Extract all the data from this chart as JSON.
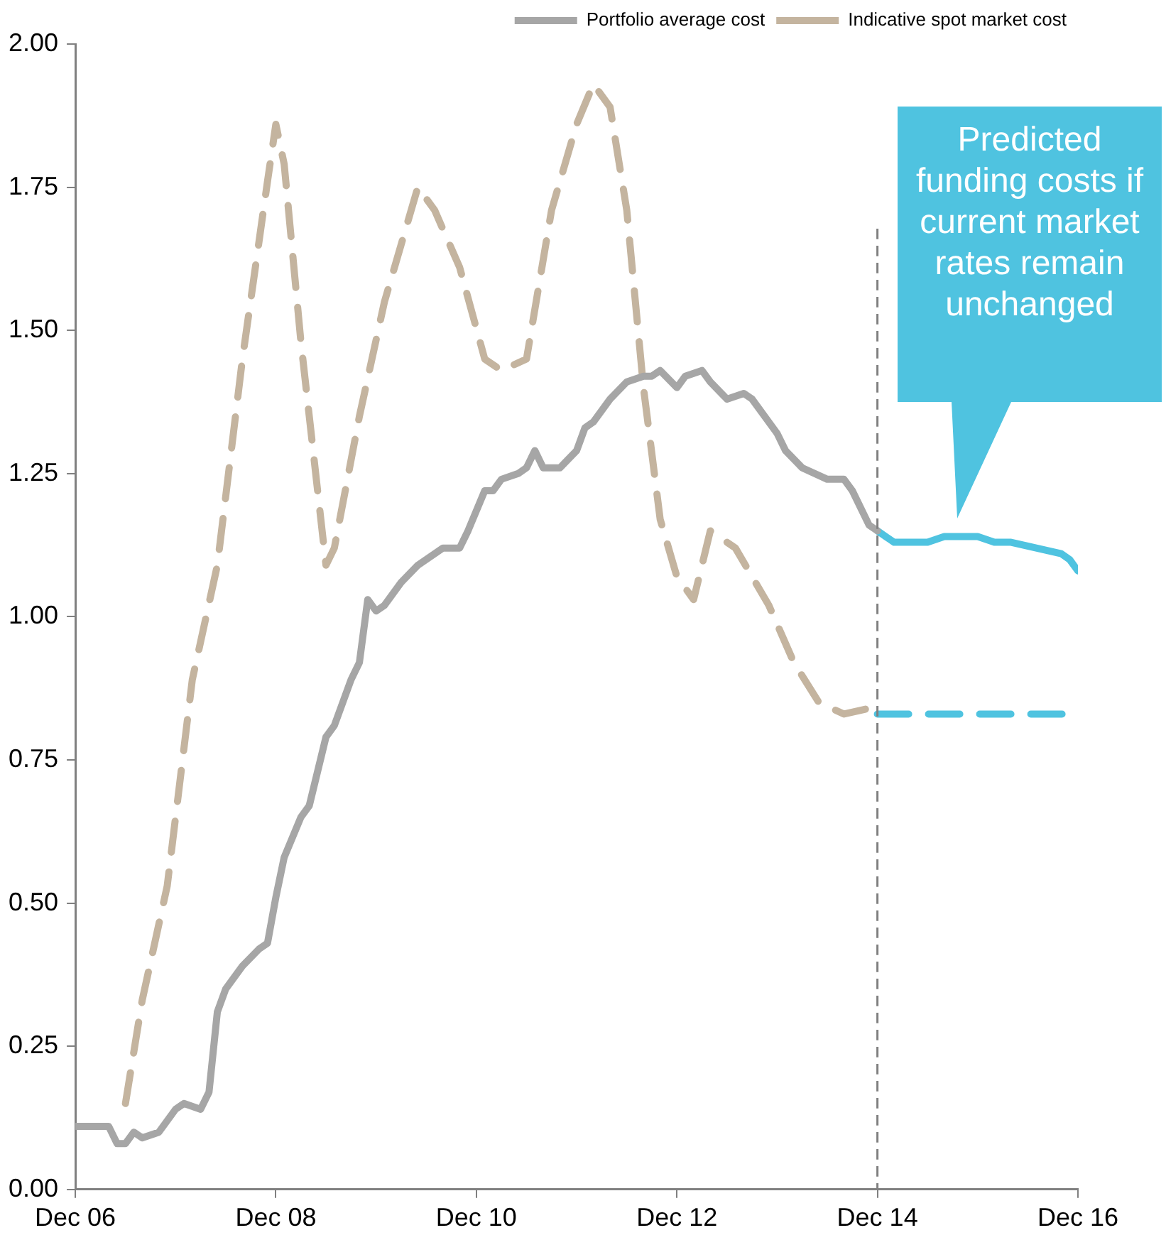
{
  "chart_data": {
    "type": "line",
    "marker": "none",
    "legend": "top right",
    "xlim": [
      "2006-12",
      "2016-12"
    ],
    "xticks": [
      {
        "value": "2006-12",
        "label": "Dec 06"
      },
      {
        "value": "2008-12",
        "label": "Dec 08"
      },
      {
        "value": "2010-12",
        "label": "Dec 10"
      },
      {
        "value": "2012-12",
        "label": "Dec 12"
      },
      {
        "value": "2014-12",
        "label": "Dec 14"
      },
      {
        "value": "2016-12",
        "label": "Dec 16"
      }
    ],
    "ylim": [
      0,
      2
    ],
    "yticks": [
      {
        "value": 0,
        "label": "0.00"
      },
      {
        "value": 0.25,
        "label": "0.25"
      },
      {
        "value": 0.5,
        "label": "0.50"
      },
      {
        "value": 0.75,
        "label": "0.75"
      },
      {
        "value": 1,
        "label": "1.00"
      },
      {
        "value": 1.25,
        "label": "1.25"
      },
      {
        "value": 1.5,
        "label": "1.50"
      },
      {
        "value": 1.75,
        "label": "1.75"
      },
      {
        "value": 2,
        "label": "2.00"
      }
    ],
    "series": [
      {
        "name": "Portfolio average cost",
        "color": "#a6a6a6",
        "line_style": "solid",
        "x": [
          "2006-12",
          "2007-04",
          "2007-05",
          "2007-06",
          "2007-07",
          "2007-08",
          "2007-10",
          "2007-12",
          "2008-01",
          "2008-03",
          "2008-04",
          "2008-05",
          "2008-06",
          "2008-08",
          "2008-10",
          "2008-11",
          "2008-12",
          "2009-01",
          "2009-03",
          "2009-04",
          "2009-06",
          "2009-07",
          "2009-09",
          "2009-10",
          "2009-11",
          "2009-12",
          "2010-01",
          "2010-03",
          "2010-05",
          "2010-08",
          "2010-10",
          "2010-11",
          "2011-01",
          "2011-02",
          "2011-03",
          "2011-05",
          "2011-06",
          "2011-07",
          "2011-08",
          "2011-10",
          "2011-12",
          "2012-01",
          "2012-02",
          "2012-04",
          "2012-06",
          "2012-08",
          "2012-09",
          "2012-10",
          "2012-12",
          "2013-01",
          "2013-03",
          "2013-04",
          "2013-06",
          "2013-08",
          "2013-09",
          "2013-12",
          "2014-01",
          "2014-03",
          "2014-06",
          "2014-08",
          "2014-09",
          "2014-11",
          "2014-12"
        ],
        "values": [
          0.11,
          0.11,
          0.08,
          0.08,
          0.1,
          0.09,
          0.1,
          0.14,
          0.15,
          0.14,
          0.17,
          0.31,
          0.35,
          0.39,
          0.42,
          0.43,
          0.51,
          0.58,
          0.65,
          0.67,
          0.79,
          0.81,
          0.89,
          0.92,
          1.03,
          1.01,
          1.02,
          1.06,
          1.09,
          1.12,
          1.12,
          1.15,
          1.22,
          1.22,
          1.24,
          1.25,
          1.26,
          1.29,
          1.26,
          1.26,
          1.29,
          1.33,
          1.34,
          1.38,
          1.41,
          1.42,
          1.42,
          1.43,
          1.4,
          1.42,
          1.43,
          1.41,
          1.38,
          1.39,
          1.38,
          1.32,
          1.29,
          1.26,
          1.24,
          1.24,
          1.22,
          1.16,
          1.15
        ]
      },
      {
        "name": "Indicative spot market cost",
        "color": "#c4b49f",
        "line_style": "dashed",
        "x": [
          "2007-06",
          "2007-08",
          "2007-11",
          "2008-02",
          "2008-05",
          "2008-08",
          "2008-11",
          "2008-12",
          "2009-01",
          "2009-03",
          "2009-05",
          "2009-06",
          "2009-07",
          "2009-10",
          "2010-01",
          "2010-05",
          "2010-07",
          "2010-10",
          "2011-01",
          "2011-03",
          "2011-06",
          "2011-09",
          "2011-12",
          "2012-02",
          "2012-04",
          "2012-06",
          "2012-08",
          "2012-10",
          "2012-12",
          "2013-02",
          "2013-04",
          "2013-07",
          "2013-11",
          "2014-02",
          "2014-05",
          "2014-08",
          "2014-11"
        ],
        "values": [
          0.15,
          0.33,
          0.53,
          0.89,
          1.09,
          1.45,
          1.76,
          1.86,
          1.79,
          1.48,
          1.22,
          1.09,
          1.12,
          1.35,
          1.55,
          1.75,
          1.71,
          1.61,
          1.45,
          1.43,
          1.45,
          1.71,
          1.86,
          1.93,
          1.89,
          1.71,
          1.4,
          1.17,
          1.07,
          1.03,
          1.15,
          1.12,
          1.02,
          0.92,
          0.85,
          0.83,
          0.84
        ]
      },
      {
        "color": "#4fc3e0",
        "line_style": "solid",
        "x": [
          "2014-12",
          "2015-01",
          "2015-02",
          "2015-06",
          "2015-08",
          "2015-12",
          "2016-02",
          "2016-04",
          "2016-07",
          "2016-10",
          "2016-11",
          "2016-12"
        ],
        "values": [
          1.15,
          1.14,
          1.13,
          1.13,
          1.14,
          1.14,
          1.13,
          1.13,
          1.12,
          1.11,
          1.1,
          1.08
        ]
      },
      {
        "color": "#4fc3e0",
        "line_style": "dashed",
        "x": [
          "2014-12",
          "2016-12"
        ],
        "values": [
          0.83,
          0.83
        ]
      }
    ],
    "ref_lines": [
      {
        "axis": "x",
        "value": "2014-12",
        "color": "#808080",
        "line_style": "dashed"
      }
    ],
    "annotations": [
      "Predicted funding costs if current market rates remain unchanged"
    ]
  }
}
